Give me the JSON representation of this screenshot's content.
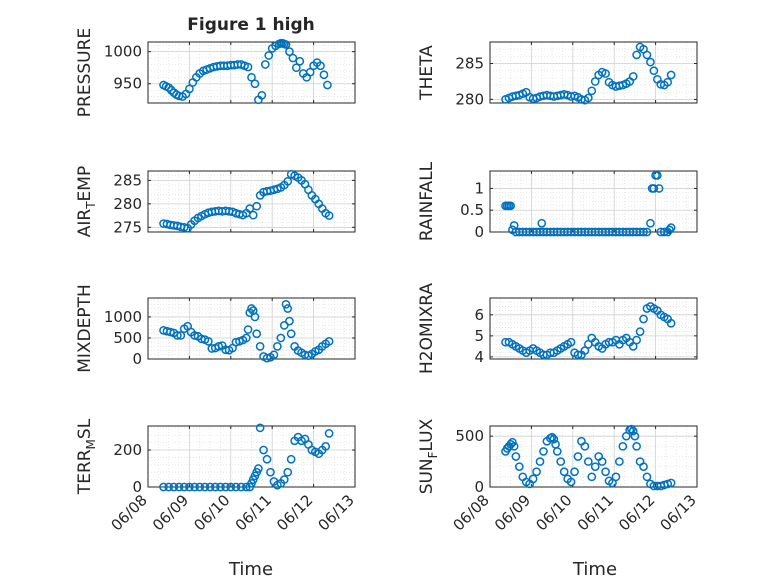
{
  "figure": {
    "title": "Figure 1 high",
    "xlabel": "Time"
  },
  "colors": {
    "marker": "#0072BD",
    "axis": "#262626",
    "grid": "#d0d0d0",
    "minorGrid": "#e3e3e3"
  },
  "x_ticks": [
    "06/08",
    "06/09",
    "06/10",
    "06/11",
    "06/12",
    "06/13"
  ],
  "chart_data": [
    {
      "type": "scatter",
      "ylabel": "PRESSURE",
      "ylim": [
        920,
        1015
      ],
      "yticks": [
        950,
        1000
      ],
      "ytick_labels": [
        "950",
        "1000"
      ],
      "grid": true,
      "xlim": [
        "06/08",
        "06/13"
      ],
      "x": [
        "06/08 09:00",
        "06/08 10:30",
        "06/08 12:00",
        "06/08 13:30",
        "06/08 15:00",
        "06/08 16:30",
        "06/08 18:00",
        "06/08 20:00",
        "06/08 22:00",
        "06/09 00:00",
        "06/09 02:00",
        "06/09 04:00",
        "06/09 06:00",
        "06/09 08:00",
        "06/09 10:00",
        "06/09 12:00",
        "06/09 14:00",
        "06/09 16:00",
        "06/09 18:00",
        "06/09 20:00",
        "06/09 22:00",
        "06/10 00:00",
        "06/10 02:00",
        "06/10 04:00",
        "06/10 06:00",
        "06/10 08:00",
        "06/10 10:00",
        "06/10 12:00",
        "06/10 14:00",
        "06/10 16:00",
        "06/10 18:00",
        "06/10 20:00",
        "06/10 22:00",
        "06/11 00:00",
        "06/11 02:00",
        "06/11 04:00",
        "06/11 05:00",
        "06/11 06:00",
        "06/11 07:00",
        "06/11 08:00",
        "06/11 10:00",
        "06/11 12:00",
        "06/11 14:00",
        "06/11 16:00",
        "06/11 18:00",
        "06/11 20:00",
        "06/11 22:00",
        "06/12 00:00",
        "06/12 02:00",
        "06/12 04:00",
        "06/12 06:00",
        "06/12 08:00"
      ],
      "y": [
        948,
        946,
        944,
        940,
        936,
        933,
        931,
        930,
        934,
        942,
        952,
        960,
        966,
        970,
        972,
        974,
        976,
        977,
        978,
        978,
        978,
        979,
        979,
        980,
        980,
        978,
        976,
        960,
        950,
        925,
        932,
        980,
        994,
        1005,
        1009,
        1012,
        1013,
        1013,
        1012,
        1011,
        1000,
        990,
        975,
        985,
        966,
        960,
        968,
        978,
        983,
        978,
        964,
        948
      ]
    },
    {
      "type": "scatter",
      "ylabel": "THETA",
      "ylim": [
        279.5,
        288
      ],
      "yticks": [
        280,
        285
      ],
      "ytick_labels": [
        "280",
        "285"
      ],
      "grid": true,
      "xlim": [
        "06/08",
        "06/13"
      ],
      "x": [
        "06/08 09:00",
        "06/08 11:00",
        "06/08 13:00",
        "06/08 15:00",
        "06/08 17:00",
        "06/08 19:00",
        "06/08 21:00",
        "06/08 23:00",
        "06/09 01:00",
        "06/09 03:00",
        "06/09 05:00",
        "06/09 07:00",
        "06/09 09:00",
        "06/09 11:00",
        "06/09 13:00",
        "06/09 15:00",
        "06/09 17:00",
        "06/09 19:00",
        "06/09 21:00",
        "06/09 23:00",
        "06/10 01:00",
        "06/10 03:00",
        "06/10 05:00",
        "06/10 07:00",
        "06/10 09:00",
        "06/10 11:00",
        "06/10 13:00",
        "06/10 15:00",
        "06/10 17:00",
        "06/10 19:00",
        "06/10 21:00",
        "06/10 23:00",
        "06/11 01:00",
        "06/11 03:00",
        "06/11 05:00",
        "06/11 07:00",
        "06/11 09:00",
        "06/11 11:00",
        "06/11 13:00",
        "06/11 15:00",
        "06/11 17:00",
        "06/11 19:00",
        "06/11 21:00",
        "06/11 23:00",
        "06/12 01:00",
        "06/12 03:00",
        "06/12 05:00",
        "06/12 07:00",
        "06/12 09:00"
      ],
      "y": [
        280.0,
        280.2,
        280.4,
        280.5,
        280.6,
        280.8,
        281.0,
        280.3,
        280.1,
        280.2,
        280.4,
        280.5,
        280.6,
        280.5,
        280.4,
        280.5,
        280.6,
        280.7,
        280.6,
        280.4,
        280.5,
        280.3,
        280.0,
        279.9,
        280.2,
        281.2,
        282.5,
        283.4,
        283.8,
        283.6,
        282.4,
        282.0,
        281.8,
        281.9,
        282.0,
        282.2,
        282.5,
        283.2,
        286.2,
        287.3,
        287.0,
        286.2,
        285.2,
        284.0,
        282.8,
        282.1,
        282.0,
        282.4,
        283.4
      ]
    },
    {
      "type": "scatter",
      "ylabel": "AIR_TEMP",
      "ylim": [
        274,
        287
      ],
      "yticks": [
        275,
        280,
        285
      ],
      "ytick_labels": [
        "275",
        "280",
        "285"
      ],
      "grid": true,
      "xlim": [
        "06/08",
        "06/13"
      ],
      "x": [
        "06/08 09:00",
        "06/08 11:00",
        "06/08 13:00",
        "06/08 15:00",
        "06/08 17:00",
        "06/08 19:00",
        "06/08 21:00",
        "06/08 23:00",
        "06/09 01:00",
        "06/09 03:00",
        "06/09 05:00",
        "06/09 07:00",
        "06/09 09:00",
        "06/09 11:00",
        "06/09 13:00",
        "06/09 15:00",
        "06/09 17:00",
        "06/09 19:00",
        "06/09 21:00",
        "06/09 23:00",
        "06/10 01:00",
        "06/10 03:00",
        "06/10 05:00",
        "06/10 07:00",
        "06/10 09:00",
        "06/10 11:00",
        "06/10 13:00",
        "06/10 15:00",
        "06/10 17:00",
        "06/10 19:00",
        "06/10 21:00",
        "06/10 23:00",
        "06/11 01:00",
        "06/11 03:00",
        "06/11 05:00",
        "06/11 07:00",
        "06/11 09:00",
        "06/11 11:00",
        "06/11 13:00",
        "06/11 15:00",
        "06/11 17:00",
        "06/11 19:00",
        "06/11 21:00",
        "06/11 23:00",
        "06/12 01:00",
        "06/12 03:00",
        "06/12 05:00",
        "06/12 07:00",
        "06/12 09:00"
      ],
      "y": [
        275.8,
        275.7,
        275.5,
        275.4,
        275.3,
        275.1,
        275.0,
        274.8,
        275.6,
        276.4,
        277.0,
        277.4,
        277.8,
        278.1,
        278.3,
        278.4,
        278.5,
        278.4,
        278.5,
        278.4,
        278.3,
        278.0,
        277.8,
        277.6,
        278.0,
        279.0,
        277.6,
        279.5,
        281.8,
        282.5,
        282.7,
        282.8,
        283.0,
        283.2,
        283.5,
        284.0,
        284.8,
        286.3,
        286.0,
        285.6,
        285.0,
        284.2,
        283.0,
        281.8,
        281.0,
        280.0,
        279.0,
        278.0,
        277.5
      ]
    },
    {
      "type": "scatter",
      "ylabel": "RAINFALL",
      "ylim": [
        0,
        1.4
      ],
      "yticks": [
        0,
        0.5,
        1
      ],
      "ytick_labels": [
        "0",
        "0.5",
        "1"
      ],
      "grid": true,
      "xlim": [
        "06/08",
        "06/13"
      ],
      "x": [
        "06/08 09:00",
        "06/08 10:00",
        "06/08 11:00",
        "06/08 12:00",
        "06/08 13:00",
        "06/08 14:00",
        "06/08 15:00",
        "06/08 17:00",
        "06/08 19:00",
        "06/08 21:00",
        "06/08 23:00",
        "06/09 01:00",
        "06/09 03:00",
        "06/09 05:00",
        "06/09 06:00",
        "06/09 07:00",
        "06/09 09:00",
        "06/09 11:00",
        "06/09 13:00",
        "06/09 15:00",
        "06/09 17:00",
        "06/09 19:00",
        "06/09 21:00",
        "06/09 23:00",
        "06/10 01:00",
        "06/10 03:00",
        "06/10 05:00",
        "06/10 07:00",
        "06/10 09:00",
        "06/10 11:00",
        "06/10 13:00",
        "06/10 15:00",
        "06/10 17:00",
        "06/10 19:00",
        "06/10 21:00",
        "06/10 23:00",
        "06/11 01:00",
        "06/11 03:00",
        "06/11 05:00",
        "06/11 07:00",
        "06/11 09:00",
        "06/11 11:00",
        "06/11 13:00",
        "06/11 15:00",
        "06/11 17:00",
        "06/11 19:00",
        "06/11 21:00",
        "06/11 22:00",
        "06/11 23:00",
        "06/12 00:00",
        "06/12 01:00",
        "06/12 02:00",
        "06/12 03:00",
        "06/12 05:00",
        "06/12 07:00",
        "06/12 08:00",
        "06/12 09:00"
      ],
      "y": [
        0.6,
        0.6,
        0.6,
        0.6,
        0.05,
        0.15,
        0,
        0,
        0,
        0,
        0,
        0,
        0,
        0,
        0.2,
        0,
        0,
        0,
        0,
        0,
        0,
        0,
        0,
        0,
        0,
        0,
        0,
        0,
        0,
        0,
        0,
        0,
        0,
        0,
        0,
        0,
        0,
        0,
        0,
        0,
        0,
        0,
        0,
        0,
        0,
        0,
        0.2,
        1.0,
        1.0,
        1.3,
        1.3,
        1.0,
        0,
        0,
        0,
        0.05,
        0.1
      ]
    },
    {
      "type": "scatter",
      "ylabel": "MIXDEPTH",
      "ylim": [
        0,
        1450
      ],
      "yticks": [
        0,
        500,
        1000
      ],
      "ytick_labels": [
        "0",
        "500",
        "1000"
      ],
      "grid": true,
      "xlim": [
        "06/08",
        "06/13"
      ],
      "x": [
        "06/08 09:00",
        "06/08 11:00",
        "06/08 13:00",
        "06/08 15:00",
        "06/08 17:00",
        "06/08 19:00",
        "06/08 21:00",
        "06/08 23:00",
        "06/09 01:00",
        "06/09 03:00",
        "06/09 05:00",
        "06/09 07:00",
        "06/09 09:00",
        "06/09 11:00",
        "06/09 13:00",
        "06/09 15:00",
        "06/09 17:00",
        "06/09 19:00",
        "06/09 21:00",
        "06/09 23:00",
        "06/10 01:00",
        "06/10 03:00",
        "06/10 05:00",
        "06/10 07:00",
        "06/10 09:00",
        "06/10 10:00",
        "06/10 11:00",
        "06/10 12:00",
        "06/10 13:00",
        "06/10 14:00",
        "06/10 15:00",
        "06/10 17:00",
        "06/10 19:00",
        "06/10 21:00",
        "06/10 23:00",
        "06/11 01:00",
        "06/11 03:00",
        "06/11 05:00",
        "06/11 07:00",
        "06/11 08:00",
        "06/11 09:00",
        "06/11 10:00",
        "06/11 11:00",
        "06/11 13:00",
        "06/11 15:00",
        "06/11 17:00",
        "06/11 19:00",
        "06/11 21:00",
        "06/11 23:00",
        "06/12 01:00",
        "06/12 03:00",
        "06/12 05:00",
        "06/12 07:00",
        "06/12 09:00"
      ],
      "y": [
        680,
        660,
        640,
        620,
        560,
        560,
        720,
        780,
        640,
        560,
        540,
        480,
        460,
        420,
        250,
        260,
        300,
        320,
        220,
        210,
        260,
        400,
        420,
        450,
        500,
        700,
        1100,
        1200,
        1150,
        1000,
        600,
        300,
        60,
        20,
        40,
        100,
        300,
        500,
        800,
        1300,
        1200,
        900,
        600,
        300,
        200,
        150,
        100,
        80,
        120,
        180,
        220,
        300,
        360,
        420
      ]
    },
    {
      "type": "scatter",
      "ylabel": "H2OMIXRA",
      "ylim": [
        3.9,
        6.8
      ],
      "yticks": [
        4,
        5,
        6
      ],
      "ytick_labels": [
        "4",
        "5",
        "6"
      ],
      "grid": true,
      "xlim": [
        "06/08",
        "06/13"
      ],
      "x": [
        "06/08 09:00",
        "06/08 11:00",
        "06/08 13:00",
        "06/08 15:00",
        "06/08 17:00",
        "06/08 19:00",
        "06/08 21:00",
        "06/08 23:00",
        "06/09 01:00",
        "06/09 03:00",
        "06/09 05:00",
        "06/09 07:00",
        "06/09 09:00",
        "06/09 11:00",
        "06/09 13:00",
        "06/09 15:00",
        "06/09 17:00",
        "06/09 19:00",
        "06/09 21:00",
        "06/09 23:00",
        "06/10 01:00",
        "06/10 03:00",
        "06/10 05:00",
        "06/10 07:00",
        "06/10 09:00",
        "06/10 11:00",
        "06/10 13:00",
        "06/10 15:00",
        "06/10 17:00",
        "06/10 19:00",
        "06/10 21:00",
        "06/10 23:00",
        "06/11 01:00",
        "06/11 03:00",
        "06/11 05:00",
        "06/11 07:00",
        "06/11 09:00",
        "06/11 11:00",
        "06/11 13:00",
        "06/11 15:00",
        "06/11 17:00",
        "06/11 19:00",
        "06/11 21:00",
        "06/11 23:00",
        "06/12 01:00",
        "06/12 03:00",
        "06/12 05:00",
        "06/12 07:00",
        "06/12 09:00"
      ],
      "y": [
        4.7,
        4.7,
        4.6,
        4.5,
        4.4,
        4.3,
        4.2,
        4.3,
        4.4,
        4.3,
        4.2,
        4.1,
        4.1,
        4.2,
        4.2,
        4.3,
        4.4,
        4.5,
        4.6,
        4.7,
        4.2,
        4.1,
        4.1,
        4.3,
        4.6,
        4.9,
        4.7,
        4.5,
        4.4,
        4.6,
        4.7,
        4.7,
        4.8,
        4.6,
        4.8,
        4.9,
        4.7,
        4.5,
        4.8,
        5.2,
        5.8,
        6.3,
        6.4,
        6.3,
        6.2,
        6.0,
        5.9,
        5.8,
        5.6
      ]
    },
    {
      "type": "scatter",
      "ylabel": "TERR_MSL",
      "ylim": [
        0,
        330
      ],
      "yticks": [
        0,
        200
      ],
      "ytick_labels": [
        "0",
        "200"
      ],
      "grid": true,
      "xlim": [
        "06/08",
        "06/13"
      ],
      "x": [
        "06/08 09:00",
        "06/08 12:00",
        "06/08 15:00",
        "06/08 18:00",
        "06/08 21:00",
        "06/09 00:00",
        "06/09 03:00",
        "06/09 06:00",
        "06/09 09:00",
        "06/09 12:00",
        "06/09 15:00",
        "06/09 18:00",
        "06/09 21:00",
        "06/10 00:00",
        "06/10 03:00",
        "06/10 06:00",
        "06/10 09:00",
        "06/10 11:00",
        "06/10 12:00",
        "06/10 13:00",
        "06/10 14:00",
        "06/10 15:00",
        "06/10 16:00",
        "06/10 17:00",
        "06/10 19:00",
        "06/10 21:00",
        "06/10 23:00",
        "06/11 01:00",
        "06/11 03:00",
        "06/11 05:00",
        "06/11 07:00",
        "06/11 09:00",
        "06/11 11:00",
        "06/11 13:00",
        "06/11 15:00",
        "06/11 17:00",
        "06/11 19:00",
        "06/11 21:00",
        "06/11 23:00",
        "06/12 01:00",
        "06/12 03:00",
        "06/12 05:00",
        "06/12 07:00",
        "06/12 09:00"
      ],
      "y": [
        0,
        0,
        0,
        0,
        0,
        0,
        0,
        0,
        0,
        0,
        0,
        0,
        0,
        0,
        0,
        0,
        0,
        0,
        20,
        40,
        60,
        80,
        100,
        320,
        200,
        150,
        80,
        30,
        10,
        20,
        40,
        80,
        150,
        250,
        270,
        250,
        260,
        230,
        200,
        190,
        180,
        200,
        220,
        290
      ]
    },
    {
      "type": "scatter",
      "ylabel": "SUN_FLUX",
      "ylim": [
        0,
        600
      ],
      "yticks": [
        0,
        500
      ],
      "ytick_labels": [
        "0",
        "500"
      ],
      "grid": true,
      "xlim": [
        "06/08",
        "06/13"
      ],
      "x": [
        "06/08 09:00",
        "06/08 10:00",
        "06/08 11:00",
        "06/08 12:00",
        "06/08 13:00",
        "06/08 14:00",
        "06/08 15:00",
        "06/08 17:00",
        "06/08 19:00",
        "06/08 21:00",
        "06/08 23:00",
        "06/09 01:00",
        "06/09 03:00",
        "06/09 05:00",
        "06/09 07:00",
        "06/09 09:00",
        "06/09 11:00",
        "06/09 12:00",
        "06/09 13:00",
        "06/09 14:00",
        "06/09 15:00",
        "06/09 17:00",
        "06/09 19:00",
        "06/09 21:00",
        "06/09 23:00",
        "06/10 01:00",
        "06/10 03:00",
        "06/10 05:00",
        "06/10 07:00",
        "06/10 09:00",
        "06/10 11:00",
        "06/10 13:00",
        "06/10 15:00",
        "06/10 17:00",
        "06/10 19:00",
        "06/10 21:00",
        "06/10 23:00",
        "06/11 01:00",
        "06/11 03:00",
        "06/11 05:00",
        "06/11 07:00",
        "06/11 09:00",
        "06/11 10:00",
        "06/11 11:00",
        "06/11 12:00",
        "06/11 13:00",
        "06/11 15:00",
        "06/11 17:00",
        "06/11 19:00",
        "06/11 21:00",
        "06/11 23:00",
        "06/12 01:00",
        "06/12 03:00",
        "06/12 05:00",
        "06/12 07:00",
        "06/12 09:00"
      ],
      "y": [
        350,
        380,
        400,
        420,
        440,
        400,
        300,
        200,
        100,
        50,
        30,
        80,
        150,
        250,
        350,
        450,
        480,
        490,
        470,
        420,
        350,
        250,
        150,
        80,
        50,
        150,
        300,
        450,
        400,
        250,
        100,
        200,
        300,
        250,
        150,
        60,
        40,
        100,
        250,
        400,
        500,
        560,
        570,
        550,
        500,
        400,
        250,
        200,
        100,
        30,
        10,
        10,
        10,
        20,
        30,
        40
      ]
    }
  ]
}
